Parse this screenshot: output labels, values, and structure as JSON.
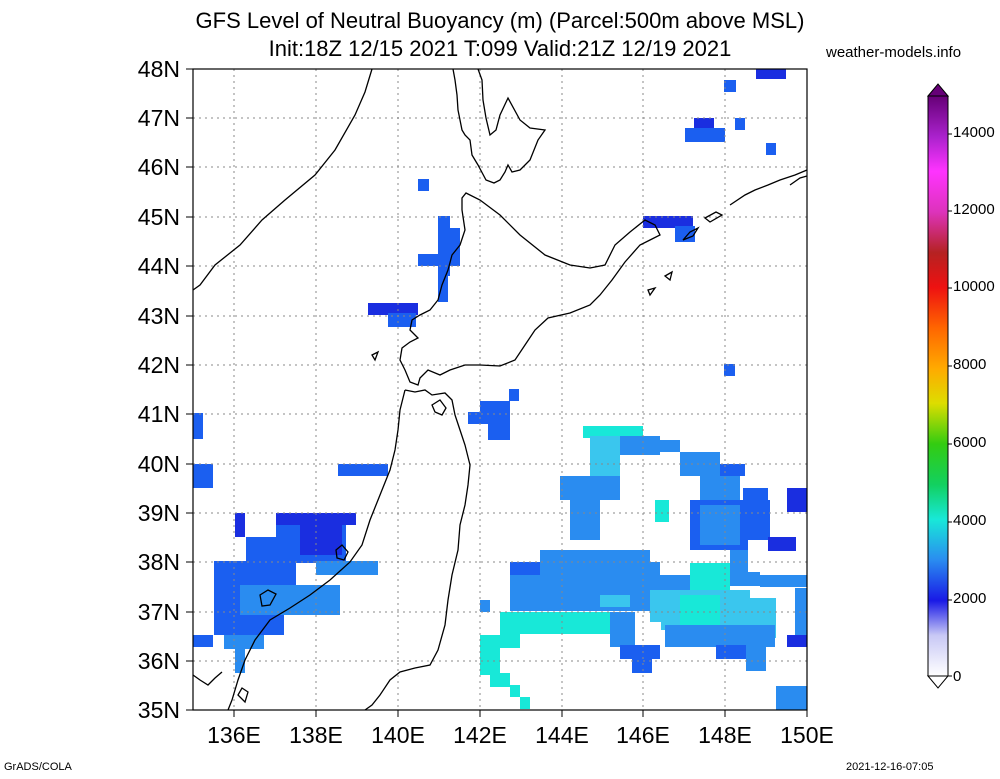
{
  "title_line1": "GFS Level of Neutral Buoyancy (m) (Parcel:500m above MSL)",
  "title_line2": "Init:18Z 12/15 2021 T:099 Valid:21Z 12/19 2021",
  "site": "weather-models.info",
  "footer_left": "GrADS/COLA",
  "footer_right": "2021-12-16-07:05",
  "lat_labels": [
    "48N",
    "47N",
    "46N",
    "45N",
    "44N",
    "43N",
    "42N",
    "41N",
    "40N",
    "39N",
    "38N",
    "37N",
    "36N",
    "35N"
  ],
  "lon_labels": [
    "136E",
    "138E",
    "140E",
    "142E",
    "144E",
    "146E",
    "148E",
    "150E"
  ],
  "colorbar_labels": [
    "14000",
    "12000",
    "10000",
    "8000",
    "6000",
    "4000",
    "2000",
    "0"
  ],
  "colors": {
    "light_blue": "#2a8cf0",
    "mid_blue": "#1b5ff0",
    "dark_blue": "#1a2ee0",
    "cyan": "#18e8d8",
    "aqua": "#3ac6ee"
  }
}
